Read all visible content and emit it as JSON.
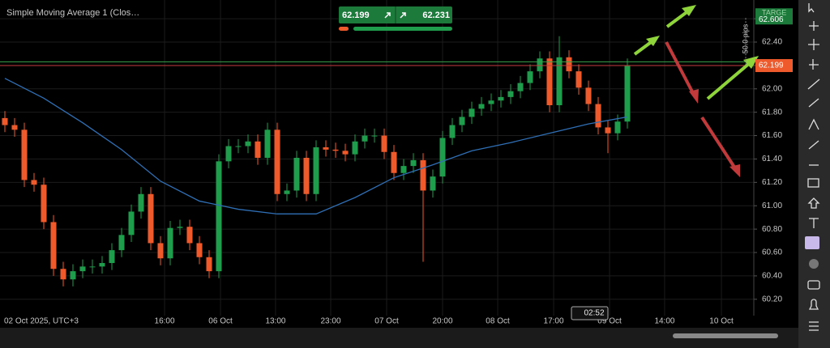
{
  "chart_data": {
    "type": "candlestick",
    "up_color": "#1f9d4c",
    "down_color": "#ee5a2b",
    "open": [
      61.75,
      61.69,
      61.65,
      61.22,
      61.18,
      60.86,
      60.46,
      60.37,
      60.44,
      60.48,
      60.48,
      60.51,
      60.62,
      60.75,
      60.95,
      61.1,
      60.68,
      60.55,
      60.81,
      60.82,
      60.68,
      60.56,
      60.44,
      61.38,
      61.51,
      61.51,
      61.55,
      61.41,
      61.65,
      61.1,
      61.13,
      61.41,
      61.1,
      61.5,
      61.48,
      61.47,
      61.44,
      61.55,
      61.6,
      61.6,
      61.46,
      61.28,
      61.34,
      61.39,
      61.13,
      61.25,
      61.58,
      61.69,
      61.76,
      61.83,
      61.87,
      61.9,
      61.93,
      61.98,
      62.05,
      62.15,
      62.26,
      61.86,
      62.27,
      62.15,
      62.01,
      61.87,
      61.67,
      61.62,
      61.72
    ],
    "high": [
      61.81,
      61.75,
      61.71,
      61.28,
      61.24,
      60.92,
      60.52,
      60.5,
      60.54,
      60.54,
      60.57,
      60.68,
      60.81,
      61.01,
      61.16,
      61.16,
      60.74,
      60.87,
      60.88,
      60.88,
      60.74,
      60.62,
      61.44,
      61.57,
      61.57,
      61.61,
      61.61,
      61.71,
      61.71,
      61.19,
      61.47,
      61.47,
      61.56,
      61.56,
      61.54,
      61.53,
      61.61,
      61.66,
      61.66,
      61.66,
      61.52,
      61.4,
      61.45,
      61.45,
      61.31,
      61.64,
      61.75,
      61.82,
      61.89,
      61.93,
      61.96,
      61.99,
      62.04,
      62.11,
      62.21,
      62.32,
      62.32,
      62.45,
      62.33,
      62.21,
      62.07,
      61.93,
      61.73,
      61.78,
      62.26
    ],
    "low": [
      61.63,
      61.59,
      61.16,
      61.12,
      60.8,
      60.4,
      60.31,
      60.31,
      60.38,
      60.42,
      60.42,
      60.45,
      60.56,
      60.69,
      60.89,
      60.62,
      60.49,
      60.49,
      60.75,
      60.62,
      60.5,
      60.38,
      60.38,
      61.32,
      61.45,
      61.45,
      61.35,
      61.35,
      61.04,
      61.04,
      61.07,
      61.04,
      61.04,
      61.42,
      61.41,
      61.38,
      61.38,
      61.49,
      61.54,
      61.4,
      61.22,
      61.22,
      61.28,
      60.52,
      61.07,
      61.19,
      61.52,
      61.63,
      61.7,
      61.77,
      61.81,
      61.84,
      61.87,
      61.92,
      61.99,
      62.09,
      61.8,
      61.8,
      62.09,
      61.95,
      61.81,
      61.61,
      61.45,
      61.56,
      61.66
    ],
    "close": [
      61.69,
      61.65,
      61.22,
      61.18,
      60.86,
      60.46,
      60.37,
      60.44,
      60.48,
      60.48,
      60.51,
      60.62,
      60.75,
      60.95,
      61.1,
      60.68,
      60.55,
      60.81,
      60.82,
      60.68,
      60.56,
      60.44,
      61.38,
      61.51,
      61.51,
      61.55,
      61.41,
      61.65,
      61.1,
      61.13,
      61.41,
      61.1,
      61.5,
      61.48,
      61.47,
      61.44,
      61.55,
      61.6,
      61.6,
      61.46,
      61.28,
      61.34,
      61.39,
      61.13,
      61.25,
      61.58,
      61.69,
      61.76,
      61.83,
      61.87,
      61.9,
      61.93,
      61.98,
      62.05,
      62.15,
      62.26,
      61.86,
      62.27,
      62.15,
      62.01,
      61.87,
      61.67,
      61.62,
      61.72,
      62.2
    ],
    "series": [
      {
        "name": "Simple Moving Average 1 (Clos…",
        "color": "#2f6fb5",
        "x": [
          0,
          4,
          8,
          12,
          16,
          20,
          24,
          28,
          32,
          36,
          40,
          44,
          48,
          52,
          56,
          60,
          64
        ],
        "values": [
          62.09,
          61.92,
          61.71,
          61.48,
          61.21,
          61.04,
          60.97,
          60.93,
          60.93,
          61.07,
          61.24,
          61.35,
          61.47,
          61.54,
          61.62,
          61.7,
          61.76
        ]
      }
    ],
    "xlim": [
      -0.5,
      77
    ],
    "ylim": [
      60.06,
      62.76
    ],
    "xticks": [
      {
        "value": -0.5,
        "label": "02 Oct 2025, UTC+3"
      },
      {
        "value": 16.42,
        "label": "16:00"
      },
      {
        "value": 22.17,
        "label": "06 Oct"
      },
      {
        "value": 27.83,
        "label": "13:00"
      },
      {
        "value": 33.5,
        "label": "23:00"
      },
      {
        "value": 39.25,
        "label": "07 Oct"
      },
      {
        "value": 45.0,
        "label": "20:00"
      },
      {
        "value": 50.67,
        "label": "08 Oct"
      },
      {
        "value": 56.42,
        "label": "17:00"
      },
      {
        "value": 62.17,
        "label": "09 Oct"
      },
      {
        "value": 67.83,
        "label": "14:00"
      },
      {
        "value": 73.67,
        "label": "10 Oct"
      }
    ],
    "yticks": [
      {
        "value": 60.2,
        "label": "60.20"
      },
      {
        "value": 60.4,
        "label": "60.40"
      },
      {
        "value": 60.6,
        "label": "60.60"
      },
      {
        "value": 60.8,
        "label": "60.80"
      },
      {
        "value": 61,
        "label": "61.00"
      },
      {
        "value": 61.2,
        "label": "61.20"
      },
      {
        "value": 61.4,
        "label": "61.40"
      },
      {
        "value": 61.6,
        "label": "61.60"
      },
      {
        "value": 61.8,
        "label": "61.80"
      },
      {
        "value": 62,
        "label": "62.00"
      },
      {
        "value": 62.2,
        "label": "62.20"
      },
      {
        "value": 62.4,
        "label": "62.40"
      },
      {
        "value": 62.6,
        "label": "62.60"
      }
    ],
    "grid": true,
    "bid": 62.199,
    "ask": 62.231,
    "target": 62.606,
    "target_label": "TARGE",
    "pips_label": "50.0 pips",
    "cursor_time": "02:52"
  }
}
